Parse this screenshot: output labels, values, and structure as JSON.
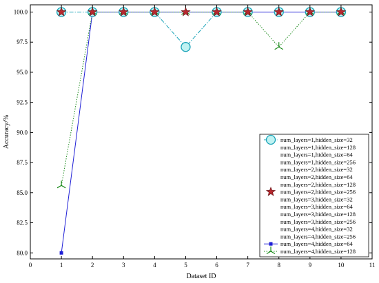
{
  "chart_data": {
    "type": "line",
    "xlabel": "Dataset ID",
    "ylabel": "Accuracy/%",
    "xlim": [
      0,
      11
    ],
    "ylim": [
      79.5,
      100.6
    ],
    "xticks": [
      0,
      1,
      2,
      3,
      4,
      5,
      6,
      7,
      8,
      9,
      10,
      11
    ],
    "yticks": [
      80.0,
      82.5,
      85.0,
      87.5,
      90.0,
      92.5,
      95.0,
      97.5,
      100.0
    ],
    "ytick_labels": [
      "80.0",
      "82.5",
      "85.0",
      "87.5",
      "90.0",
      "92.5",
      "95.0",
      "97.5",
      "100.0"
    ],
    "grid": false,
    "legend_placement": "lower-right",
    "x": [
      1,
      2,
      3,
      4,
      5,
      6,
      7,
      8,
      9,
      10
    ],
    "series": [
      {
        "name": "num_layers=1,hidden_size=32",
        "values": [
          100,
          100,
          100,
          100,
          97.1,
          100,
          100,
          100,
          100,
          100
        ],
        "color": "#1aa3b8",
        "marker": "circle",
        "linestyle": "dashdot"
      },
      {
        "name": "num_layers=1,hidden_size=128",
        "values": [
          100,
          100,
          100,
          100,
          100,
          100,
          100,
          100,
          100,
          100
        ],
        "color": "#d9a0e6",
        "marker": "none",
        "linestyle": "none"
      },
      {
        "name": "num_layers=1,hidden_size=64",
        "values": [
          100,
          100,
          100,
          100,
          100,
          100,
          100,
          100,
          100,
          100
        ],
        "color": "#ffffff",
        "marker": "none",
        "linestyle": "none"
      },
      {
        "name": "num_layers=1,hidden_size=256",
        "values": [
          100,
          100,
          100,
          100,
          100,
          100,
          100,
          100,
          100,
          100
        ],
        "color": "#ffffff",
        "marker": "none",
        "linestyle": "none"
      },
      {
        "name": "num_layers=2,hidden_size=32",
        "values": [
          100,
          100,
          100,
          100,
          100,
          100,
          100,
          100,
          100,
          100
        ],
        "color": "#ffffff",
        "marker": "none",
        "linestyle": "none"
      },
      {
        "name": "num_layers=2,hidden_size=64",
        "values": [
          100,
          100,
          100,
          100,
          100,
          100,
          100,
          100,
          100,
          100
        ],
        "color": "#ffffff",
        "marker": "none",
        "linestyle": "none"
      },
      {
        "name": "num_layers=2,hidden_size=128",
        "values": [
          100,
          100,
          100,
          100,
          100,
          100,
          100,
          100,
          100,
          100
        ],
        "color": "#ffffff",
        "marker": "none",
        "linestyle": "none"
      },
      {
        "name": "num_layers=2,hidden_size=256",
        "values": [
          100,
          100,
          100,
          100,
          100,
          100,
          100,
          100,
          100,
          100
        ],
        "color": "#b8282e",
        "marker": "star",
        "linestyle": "none"
      },
      {
        "name": "num_layers=3,hidden_size=32",
        "values": [
          100,
          100,
          100,
          100,
          100,
          100,
          100,
          100,
          100,
          100
        ],
        "color": "#ffffff",
        "marker": "none",
        "linestyle": "none"
      },
      {
        "name": "num_layers=3,hidden_size=64",
        "values": [
          100,
          100,
          100,
          100,
          100,
          100,
          100,
          100,
          100,
          100
        ],
        "color": "#ffffff",
        "marker": "none",
        "linestyle": "none"
      },
      {
        "name": "num_layers=3,hidden_size=128",
        "values": [
          100,
          100,
          100,
          100,
          100,
          100,
          100,
          100,
          100,
          100
        ],
        "color": "#ffffff",
        "marker": "none",
        "linestyle": "none"
      },
      {
        "name": "num_layers=3,hidden_size=256",
        "values": [
          100,
          100,
          100,
          100,
          100,
          100,
          100,
          100,
          100,
          100
        ],
        "color": "#ffffff",
        "marker": "none",
        "linestyle": "none"
      },
      {
        "name": "num_layers=4,hidden_size=32",
        "values": [
          100,
          100,
          100,
          100,
          100,
          100,
          100,
          100,
          100,
          100
        ],
        "color": "#ffffff",
        "marker": "none",
        "linestyle": "none"
      },
      {
        "name": "num_layers=4,hidden_size=256",
        "values": [
          100,
          100,
          100,
          100,
          100,
          100,
          100,
          100,
          100,
          100
        ],
        "color": "#ffffff",
        "marker": "none",
        "linestyle": "none"
      },
      {
        "name": "num_layers=4,hidden_size=64",
        "values": [
          80.0,
          100,
          100,
          100,
          100,
          100,
          100,
          100,
          100,
          100
        ],
        "color": "#1f1fd6",
        "marker": "square",
        "linestyle": "solid"
      },
      {
        "name": "num_layers=4,hidden_size=128",
        "values": [
          85.6,
          100,
          100,
          100,
          100,
          100,
          100,
          97.1,
          100,
          100
        ],
        "color": "#1a8a1a",
        "marker": "tri",
        "linestyle": "dotted"
      }
    ]
  }
}
